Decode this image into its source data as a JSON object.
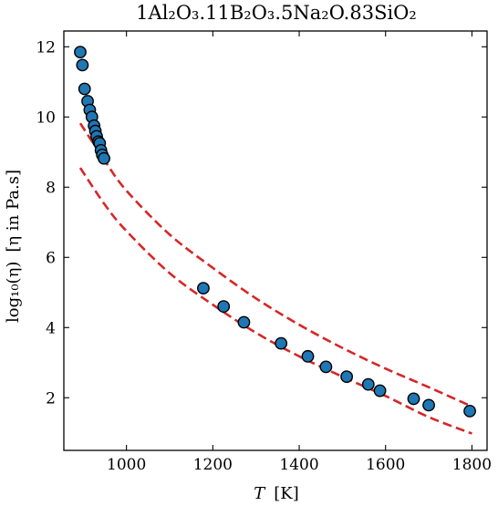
{
  "chart_data": {
    "type": "scatter",
    "title": "1Al₂O₃.11B₂O₃.5Na₂O.83SiO₂",
    "xlabel_symbol": "T",
    "xlabel_unit": "[K]",
    "ylabel_main": "log₁₀(η)",
    "ylabel_unit_prefix": "[η",
    "ylabel_unit_suffix": " in Pa.s]",
    "xlim": [
      855,
      1835
    ],
    "ylim": [
      0.5,
      12.45
    ],
    "xticks": [
      1000,
      1200,
      1400,
      1600,
      1800
    ],
    "yticks": [
      2,
      4,
      6,
      8,
      10,
      12
    ],
    "grid": false,
    "legend": "none",
    "colors": {
      "points": "#1f77b4",
      "bands": "#d62728"
    },
    "points": [
      {
        "x": 893,
        "y": 11.85
      },
      {
        "x": 898,
        "y": 11.48
      },
      {
        "x": 903,
        "y": 10.8
      },
      {
        "x": 910,
        "y": 10.45
      },
      {
        "x": 915,
        "y": 10.2
      },
      {
        "x": 920,
        "y": 10.0
      },
      {
        "x": 925,
        "y": 9.75
      },
      {
        "x": 928,
        "y": 9.6
      },
      {
        "x": 931,
        "y": 9.45
      },
      {
        "x": 935,
        "y": 9.3
      },
      {
        "x": 938,
        "y": 9.25
      },
      {
        "x": 941,
        "y": 9.05
      },
      {
        "x": 944,
        "y": 8.92
      },
      {
        "x": 948,
        "y": 8.82
      },
      {
        "x": 1178,
        "y": 5.12
      },
      {
        "x": 1225,
        "y": 4.6
      },
      {
        "x": 1272,
        "y": 4.15
      },
      {
        "x": 1358,
        "y": 3.55
      },
      {
        "x": 1420,
        "y": 3.18
      },
      {
        "x": 1462,
        "y": 2.88
      },
      {
        "x": 1510,
        "y": 2.6
      },
      {
        "x": 1560,
        "y": 2.38
      },
      {
        "x": 1587,
        "y": 2.2
      },
      {
        "x": 1665,
        "y": 1.97
      },
      {
        "x": 1700,
        "y": 1.79
      },
      {
        "x": 1795,
        "y": 1.62
      }
    ],
    "bands": [
      {
        "x": [
          893,
          950,
          1000,
          1100,
          1200,
          1300,
          1400,
          1500,
          1600,
          1700,
          1800
        ],
        "y": [
          9.82,
          8.75,
          7.9,
          6.65,
          5.7,
          4.83,
          4.08,
          3.42,
          2.83,
          2.3,
          1.75
        ]
      },
      {
        "x": [
          893,
          950,
          1000,
          1100,
          1200,
          1300,
          1400,
          1500,
          1600,
          1700,
          1800
        ],
        "y": [
          8.55,
          7.5,
          6.75,
          5.55,
          4.65,
          3.85,
          3.18,
          2.6,
          2.05,
          1.45,
          0.98
        ]
      }
    ]
  }
}
